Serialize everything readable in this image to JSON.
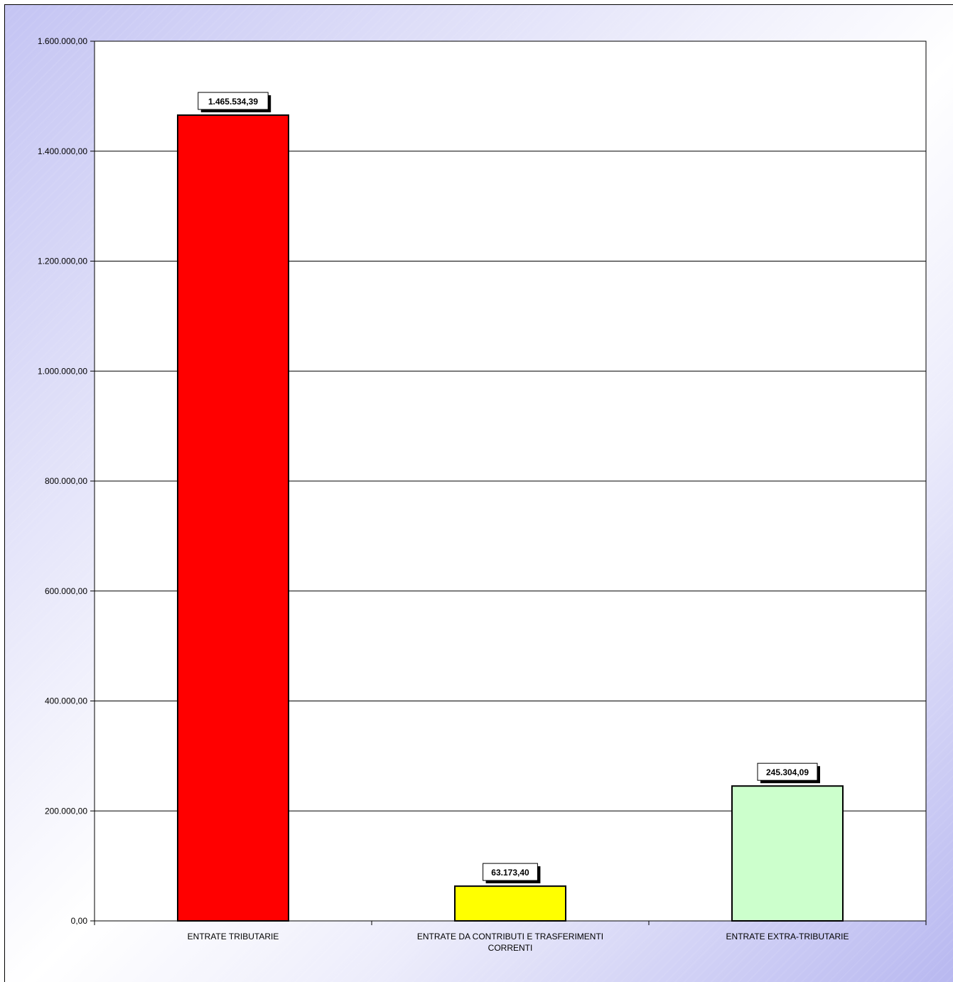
{
  "chart_data": {
    "type": "bar",
    "categories": [
      [
        "ENTRATE TRIBUTARIE"
      ],
      [
        "ENTRATE DA CONTRIBUTI E TRASFERIMENTI",
        "CORRENTI"
      ],
      [
        "ENTRATE EXTRA-TRIBUTARIE"
      ]
    ],
    "values": [
      1465534.39,
      63173.4,
      245304.09
    ],
    "value_labels": [
      "1.465.534,39",
      "63.173,40",
      "245.304,09"
    ],
    "colors": [
      "#ff0000",
      "#ffff00",
      "#ccffcc"
    ],
    "ylim": [
      0,
      1600000
    ],
    "yticks": [
      0,
      200000,
      400000,
      600000,
      800000,
      1000000,
      1200000,
      1400000,
      1600000
    ],
    "ytick_labels": [
      "0,00",
      "200.000,00",
      "400.000,00",
      "600.000,00",
      "800.000,00",
      "1.000.000,00",
      "1.200.000,00",
      "1.400.000,00",
      "1.600.000,00"
    ],
    "grid": true,
    "legend": "none",
    "title": "",
    "xlabel": "",
    "ylabel": ""
  }
}
